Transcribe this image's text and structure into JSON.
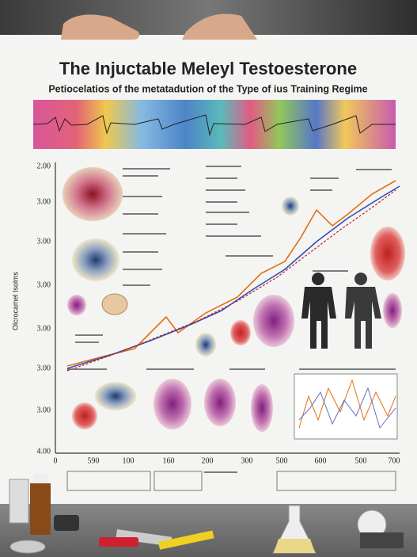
{
  "poster": {
    "title": "The Injuctable Meleyl Testoesterone",
    "subtitle": "Petiocelatios of the metatadution of the Type of ius Training Regime",
    "y_axis_title": "Olcrocamel Isolms",
    "y_axis_labels": [
      "2.00",
      "3.00",
      "3.00",
      "3.00",
      "3.00",
      "3.00",
      "3.00",
      "4.00"
    ],
    "x_axis_labels": [
      "0",
      "590",
      "100",
      "160",
      "200",
      "300",
      "500",
      "600",
      "500",
      "700"
    ]
  }
}
